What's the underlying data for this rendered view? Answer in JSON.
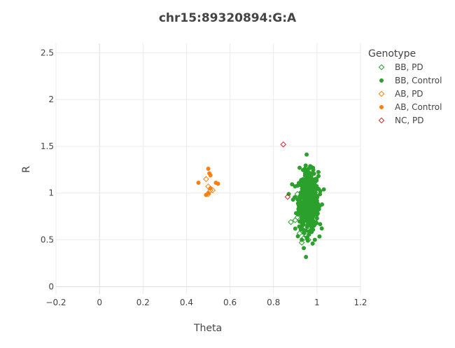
{
  "chart_data": {
    "type": "scatter",
    "title": "chr15:89320894:G:A",
    "xlabel": "Theta",
    "ylabel": "R",
    "xlim": [
      -0.2,
      1.2
    ],
    "ylim": [
      -0.08,
      2.6
    ],
    "xticks": [
      "−0.2",
      "0",
      "0.2",
      "0.4",
      "0.6",
      "0.8",
      "1",
      "1.2"
    ],
    "xtick_values": [
      -0.2,
      0,
      0.2,
      0.4,
      0.6,
      0.8,
      1,
      1.2
    ],
    "yticks": [
      "0",
      "0.5",
      "1",
      "1.5",
      "2",
      "2.5"
    ],
    "ytick_values": [
      0,
      0.5,
      1,
      1.5,
      2,
      2.5
    ],
    "grid": true,
    "legend": {
      "title": "Genotype",
      "placement": "top-right"
    },
    "series": [
      {
        "name": "BB, PD",
        "color": "#2ca02c",
        "marker": "diamond-open",
        "points": [
          [
            0.88,
            0.69
          ],
          [
            0.9,
            0.71
          ],
          [
            0.91,
            0.74
          ],
          [
            0.92,
            0.57
          ],
          [
            0.93,
            0.47
          ],
          [
            0.94,
            0.52
          ],
          [
            0.95,
            0.54
          ],
          [
            0.96,
            0.6
          ],
          [
            0.97,
            0.63
          ],
          [
            0.98,
            0.68
          ],
          [
            0.99,
            0.72
          ],
          [
            0.95,
            0.85
          ],
          [
            0.97,
            0.9
          ],
          [
            0.92,
            0.95
          ],
          [
            0.94,
            0.78
          ],
          [
            0.96,
            0.5
          ],
          [
            0.99,
            0.85
          ],
          [
            0.93,
            0.65
          ],
          [
            0.91,
            0.99
          ],
          [
            0.97,
            0.76
          ],
          [
            0.94,
            0.88
          ],
          [
            0.96,
            0.93
          ]
        ]
      },
      {
        "name": "BB, Control",
        "color": "#2ca02c",
        "marker": "circle",
        "center": [
          0.962,
          0.92
        ],
        "spread": [
          0.022,
          0.15
        ],
        "count": 700,
        "points": [
          [
            0.92,
            1.27
          ],
          [
            0.95,
            1.25
          ],
          [
            0.87,
            0.99
          ],
          [
            0.99,
            0.5
          ],
          [
            0.98,
            0.46
          ],
          [
            0.93,
            0.5
          ],
          [
            0.9,
            0.62
          ],
          [
            1.0,
            0.8
          ],
          [
            0.89,
            0.93
          ],
          [
            0.97,
            1.2
          ]
        ]
      },
      {
        "name": "AB, PD",
        "color": "#ff7f0e",
        "marker": "diamond-open",
        "points": [
          [
            0.49,
            1.15
          ],
          [
            0.5,
            1.07
          ],
          [
            0.51,
            1.03
          ],
          [
            0.52,
            1.03
          ],
          [
            0.5,
            0.99
          ]
        ]
      },
      {
        "name": "AB, Control",
        "color": "#ff7f0e",
        "marker": "circle",
        "points": [
          [
            0.455,
            1.11
          ],
          [
            0.5,
            1.26
          ],
          [
            0.51,
            1.19
          ],
          [
            0.505,
            1.21
          ],
          [
            0.535,
            1.11
          ],
          [
            0.545,
            1.1
          ],
          [
            0.5,
            1.0
          ],
          [
            0.49,
            0.98
          ],
          [
            0.51,
            1.05
          ]
        ]
      },
      {
        "name": "NC, PD",
        "color": "#d62728",
        "marker": "diamond-open",
        "points": [
          [
            0.845,
            1.52
          ],
          [
            0.865,
            0.96
          ]
        ]
      }
    ]
  }
}
